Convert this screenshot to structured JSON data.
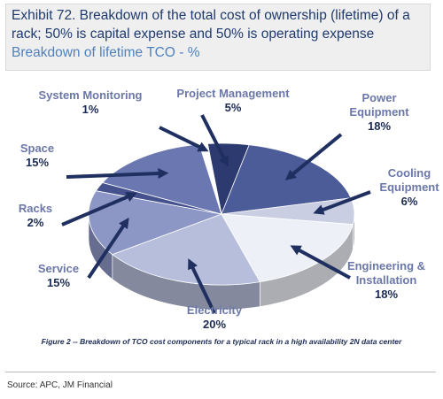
{
  "chart_data": {
    "type": "pie3d",
    "title": "Exhibit 72. Breakdown of the total cost of ownership (lifetime) of a rack; 50% is capital expense and 50% is operating expense",
    "subtitle": "Breakdown of lifetime TCO - %",
    "categories": [
      "Project Management",
      "Power Equipment",
      "Cooling Equipment",
      "Engineering & Installation",
      "Electricity",
      "Service",
      "Racks",
      "Space",
      "System Monitoring"
    ],
    "values": [
      5,
      18,
      6,
      18,
      20,
      15,
      2,
      15,
      1
    ],
    "value_labels": [
      "5%",
      "18%",
      "6%",
      "18%",
      "20%",
      "15%",
      "2%",
      "15%",
      "1%"
    ],
    "colors": [
      "#2c3a70",
      "#4b5c98",
      "#c9cee3",
      "#eef0f7",
      "#b7bedc",
      "#8d97c6",
      "#46528e",
      "#6a77b0",
      "#ffffff"
    ],
    "caption": "Figure 2 -- Breakdown of TCO cost components for a typical rack in a high availability 2N data center",
    "source": "Source: APC, JM Financial"
  }
}
